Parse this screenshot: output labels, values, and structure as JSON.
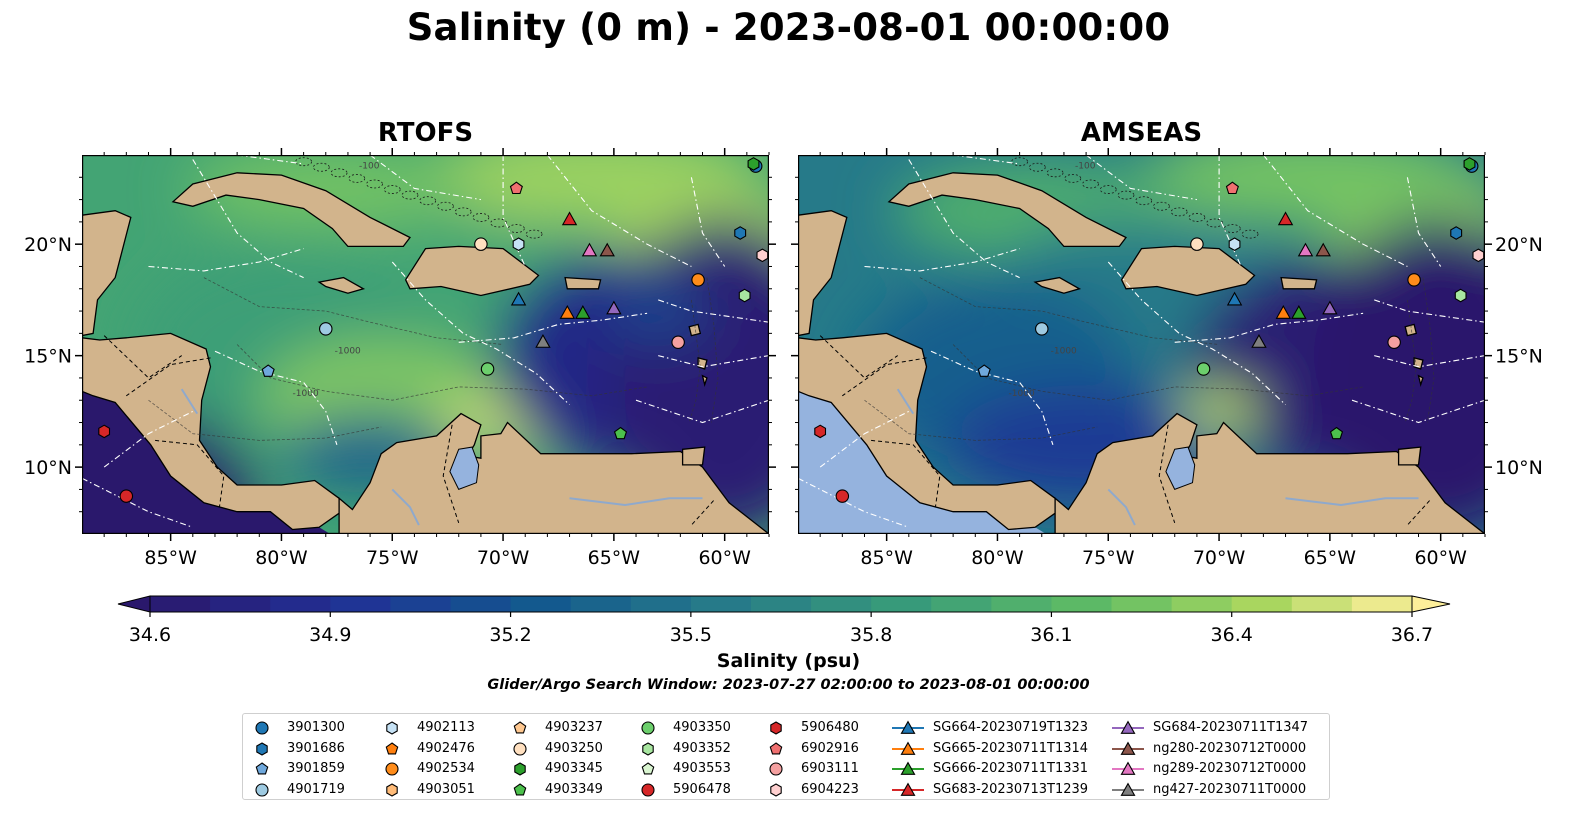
{
  "title": "Salinity (0 m) - 2023-08-01 00:00:00",
  "panels": [
    {
      "name": "RTOFS",
      "variant": "rtofs"
    },
    {
      "name": "AMSEAS",
      "variant": "amseas"
    }
  ],
  "map": {
    "lon_range": [
      -89,
      -58
    ],
    "lat_range": [
      7,
      24
    ],
    "x_ticks": [
      "85°W",
      "80°W",
      "75°W",
      "70°W",
      "65°W",
      "60°W"
    ],
    "x_tick_values": [
      -85,
      -80,
      -75,
      -70,
      -65,
      -60
    ],
    "y_ticks": [
      "20°N",
      "15°N",
      "10°N"
    ],
    "y_tick_values": [
      20,
      15,
      10
    ],
    "contour_labels": [
      "-100",
      "-1000"
    ],
    "land_color": "#d2b48c",
    "pacific_color_amseas": "#95b3de"
  },
  "colorbar": {
    "label": "Salinity (psu)",
    "min": 34.6,
    "max": 36.7,
    "ticks": [
      "34.6",
      "34.9",
      "35.2",
      "35.5",
      "35.8",
      "36.1",
      "36.4",
      "36.7"
    ],
    "colormap": "haline",
    "extend": "both"
  },
  "search_window": "Glider/Argo Search Window: 2023-07-27 02:00:00 to 2023-08-01 00:00:00",
  "legend": [
    {
      "label": "3901300",
      "marker": "circle",
      "color": "#1f77b4"
    },
    {
      "label": "3901686",
      "marker": "hexagon",
      "color": "#1f77b4"
    },
    {
      "label": "3901859",
      "marker": "pentagon",
      "color": "#6fa8dc"
    },
    {
      "label": "4901719",
      "marker": "circle",
      "color": "#9ecae1"
    },
    {
      "label": "4902113",
      "marker": "hexagon",
      "color": "#c6e2f5"
    },
    {
      "label": "4902476",
      "marker": "pentagon",
      "color": "#ff7f0e"
    },
    {
      "label": "4902534",
      "marker": "circle",
      "color": "#ff8c1a"
    },
    {
      "label": "4903051",
      "marker": "hexagon",
      "color": "#ffbb78"
    },
    {
      "label": "4903237",
      "marker": "pentagon",
      "color": "#ffc890"
    },
    {
      "label": "4903250",
      "marker": "circle",
      "color": "#ffe0c0"
    },
    {
      "label": "4903345",
      "marker": "hexagon",
      "color": "#2ca02c"
    },
    {
      "label": "4903349",
      "marker": "pentagon",
      "color": "#4cc04c"
    },
    {
      "label": "4903350",
      "marker": "circle",
      "color": "#6ccf6c"
    },
    {
      "label": "4903352",
      "marker": "hexagon",
      "color": "#a8e6a0"
    },
    {
      "label": "4903553",
      "marker": "pentagon",
      "color": "#d9f5d0"
    },
    {
      "label": "5906478",
      "marker": "circle",
      "color": "#d62728"
    },
    {
      "label": "5906480",
      "marker": "hexagon",
      "color": "#d62728"
    },
    {
      "label": "6902916",
      "marker": "pentagon",
      "color": "#f07070"
    },
    {
      "label": "6903111",
      "marker": "circle",
      "color": "#f4a0a0"
    },
    {
      "label": "6904223",
      "marker": "hexagon",
      "color": "#ffd0d0"
    },
    {
      "label": "SG664-20230719T1323",
      "marker": "triangle-line",
      "color": "#1f77b4"
    },
    {
      "label": "SG665-20230711T1314",
      "marker": "triangle-line",
      "color": "#ff7f0e"
    },
    {
      "label": "SG666-20230711T1331",
      "marker": "triangle-line",
      "color": "#2ca02c"
    },
    {
      "label": "SG683-20230713T1239",
      "marker": "triangle-line",
      "color": "#d62728"
    },
    {
      "label": "SG684-20230711T1347",
      "marker": "triangle-line",
      "color": "#9467bd"
    },
    {
      "label": "ng280-20230712T0000",
      "marker": "triangle-line",
      "color": "#8c564b"
    },
    {
      "label": "ng289-20230712T0000",
      "marker": "triangle-line",
      "color": "#e377c2"
    },
    {
      "label": "ng427-20230711T0000",
      "marker": "triangle-line",
      "color": "#7f7f7f"
    }
  ],
  "markers": [
    {
      "id": "3901300",
      "lon": -58.6,
      "lat": 23.5
    },
    {
      "id": "3901686",
      "lon": -59.3,
      "lat": 20.5
    },
    {
      "id": "3901859",
      "lon": -80.6,
      "lat": 14.3
    },
    {
      "id": "4901719",
      "lon": -78.0,
      "lat": 16.2
    },
    {
      "id": "4902113",
      "lon": -69.3,
      "lat": 20.0
    },
    {
      "id": "4902534",
      "lon": -61.2,
      "lat": 18.4
    },
    {
      "id": "4903250",
      "lon": -71.0,
      "lat": 20.0
    },
    {
      "id": "4903345",
      "lon": -58.7,
      "lat": 23.6
    },
    {
      "id": "4903349",
      "lon": -64.7,
      "lat": 11.5
    },
    {
      "id": "4903350",
      "lon": -70.7,
      "lat": 14.4
    },
    {
      "id": "4903352",
      "lon": -59.1,
      "lat": 17.7
    },
    {
      "id": "5906478",
      "lon": -87.0,
      "lat": 8.7
    },
    {
      "id": "6902916",
      "lon": -69.4,
      "lat": 22.5
    },
    {
      "id": "6903111",
      "lon": -62.1,
      "lat": 15.6
    },
    {
      "id": "6904223",
      "lon": -58.3,
      "lat": 19.5
    },
    {
      "id": "5906480",
      "lon": -88.0,
      "lat": 11.6
    },
    {
      "id": "SG664-20230719T1323",
      "lon": -69.3,
      "lat": 17.5
    },
    {
      "id": "SG665-20230711T1314",
      "lon": -67.1,
      "lat": 16.9
    },
    {
      "id": "SG666-20230711T1331",
      "lon": -66.4,
      "lat": 16.9
    },
    {
      "id": "SG683-20230713T1239",
      "lon": -67.0,
      "lat": 21.1
    },
    {
      "id": "SG684-20230711T1347",
      "lon": -65.0,
      "lat": 17.1
    },
    {
      "id": "ng280-20230712T0000",
      "lon": -65.3,
      "lat": 19.7
    },
    {
      "id": "ng289-20230712T0000",
      "lon": -66.1,
      "lat": 19.7
    },
    {
      "id": "ng427-20230711T0000",
      "lon": -68.2,
      "lat": 15.6
    }
  ]
}
